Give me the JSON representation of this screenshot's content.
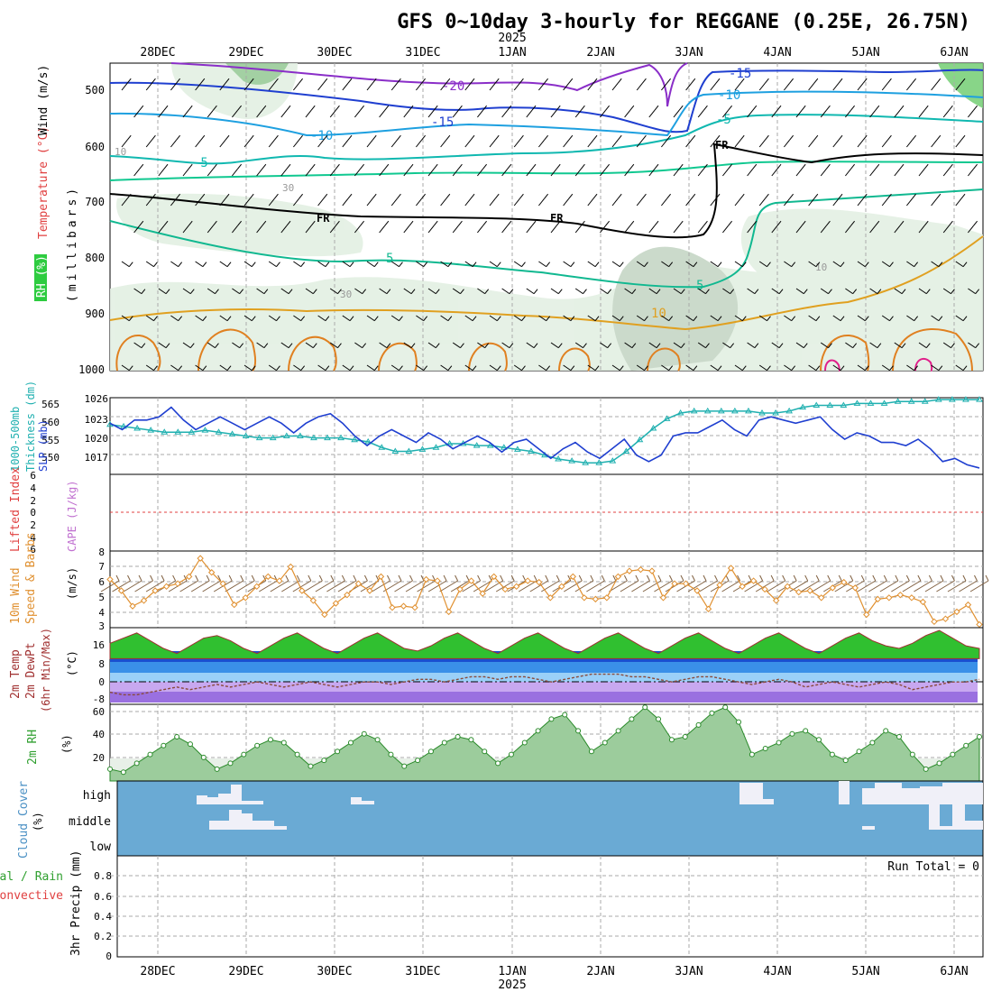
{
  "title": "GFS 0~10day 3-hourly for REGGANE (0.25E, 26.75N)",
  "year_label": "2025",
  "date_labels": [
    "28DEC",
    "29DEC",
    "30DEC",
    "31DEC",
    "1JAN",
    "2JAN",
    "3JAN",
    "4JAN",
    "5JAN",
    "6JAN"
  ],
  "colors": {
    "panel_bg": "#ffffff",
    "grid": "#999999",
    "slp": "#1f3fd0",
    "thickness": "#20b0b0",
    "lifted_index": "#e04040",
    "wind_speed": "#e09030",
    "temp_area": "#30c030",
    "dewpoint_line": "#8a4a3a",
    "rh_area": "#60b060",
    "cloud_bg": "#6aaad4",
    "cloud_fill": "#f0f0f8"
  },
  "panels": {
    "profile": {
      "axis_title_1": "Wind (m/s)",
      "axis_title_2": "Temperature (°C)",
      "axis_title_3": "RH (%)",
      "axis_unit": "(millibars)",
      "pressure_ticks": [
        "500",
        "600",
        "700",
        "800",
        "900",
        "1000"
      ],
      "contour_labels": [
        "-20",
        "-15",
        "-10",
        "-5",
        "FR",
        "FR",
        "FR",
        "5",
        "5",
        "10",
        "-15",
        "-10",
        "-5",
        "10",
        "30",
        "30",
        "10"
      ]
    },
    "slp": {
      "axis_title_1": "1000-500mb",
      "axis_title_2": "Thickness (dm)",
      "axis_title_3": "SLP (mb)",
      "thickness_ticks": [
        "565",
        "560",
        "555",
        "550"
      ],
      "slp_ticks": [
        "1026",
        "1023",
        "1020",
        "1017"
      ]
    },
    "li": {
      "axis_title_1": "Lifted Index",
      "axis_title_2": "CAPE (J/kg)",
      "ticks": [
        "6",
        "4",
        "2",
        "0",
        "2",
        "4",
        "6"
      ]
    },
    "wind10": {
      "axis_title_1": "10m Wind",
      "axis_title_2": "Speed & Barbs",
      "axis_unit": "(m/s)",
      "ticks": [
        "8",
        "7",
        "6",
        "5",
        "4",
        "3"
      ]
    },
    "temp": {
      "axis_title_1": "2m Temp",
      "axis_title_2": "2m DewPt",
      "axis_title_3": "(6hr Min/Max)",
      "axis_unit": "(°C)",
      "ticks": [
        "16",
        "8",
        "0",
        "-8"
      ]
    },
    "rh": {
      "axis_title": "2m RH",
      "axis_unit": "(%)",
      "ticks": [
        "60",
        "40",
        "20"
      ]
    },
    "cloud": {
      "axis_title": "Cloud Cover",
      "axis_unit": "(%)",
      "levels": [
        "high",
        "middle",
        "low"
      ]
    },
    "precip": {
      "axis_title_1": "Total / Rain",
      "axis_title_2": "Convective",
      "axis_title_3": "3hr Precip (mm)",
      "ticks": [
        "0.8",
        "0.6",
        "0.4",
        "0.2",
        "0"
      ],
      "run_total": "Run Total = 0"
    }
  },
  "chart_data": [
    {
      "type": "line",
      "title": "GFS 0~10day 3-hourly for REGGANE (0.25E, 26.75N)",
      "ylabel": "SLP (mb)",
      "ylim": [
        1014,
        1026
      ],
      "series": [
        {
          "name": "SLP (mb)",
          "values": [
            1022.0,
            1021.0,
            1022.5,
            1022.5,
            1023.0,
            1024.5,
            1022.5,
            1021.0,
            1022.0,
            1023.0,
            1022.0,
            1021.0,
            1022.0,
            1023.0,
            1022.0,
            1020.5,
            1022.0,
            1023.0,
            1023.5,
            1022.0,
            1020.0,
            1018.5,
            1020.0,
            1021.0,
            1020.0,
            1019.0,
            1020.5,
            1019.5,
            1018.0,
            1019.0,
            1020.0,
            1019.0,
            1017.5,
            1019.0,
            1019.5,
            1018.0,
            1016.5,
            1018.0,
            1019.0,
            1017.5,
            1016.5,
            1018.0,
            1019.5,
            1017.0,
            1016.0,
            1017.0,
            1020.0,
            1020.5,
            1020.5,
            1021.5,
            1022.5,
            1021.0,
            1020.0,
            1022.5,
            1023.0,
            1022.5,
            1022.0,
            1022.5,
            1023.0,
            1021.0,
            1019.5,
            1020.5,
            1020.0,
            1019.0,
            1019.0,
            1018.5,
            1019.5,
            1018.0,
            1016.0,
            1016.5,
            1015.5,
            1015.0
          ]
        }
      ]
    },
    {
      "type": "line",
      "ylabel": "1000-500mb Thickness (dm)",
      "ylim": [
        545,
        565
      ],
      "series": [
        {
          "name": "1000-500mb Thickness (dm)",
          "values": [
            558.0,
            557.5,
            557.0,
            556.5,
            556.0,
            556.0,
            556.0,
            556.5,
            556.0,
            555.5,
            555.0,
            554.5,
            554.5,
            555.0,
            555.0,
            554.5,
            554.5,
            554.5,
            554.0,
            553.5,
            552.0,
            551.0,
            551.0,
            551.5,
            552.0,
            553.0,
            553.0,
            552.5,
            552.5,
            552.0,
            551.5,
            551.0,
            550.0,
            549.0,
            548.5,
            548.0,
            548.0,
            548.5,
            551.0,
            554.0,
            557.0,
            559.5,
            561.0,
            561.5,
            561.5,
            561.5,
            561.5,
            561.5,
            561.0,
            561.0,
            561.5,
            562.5,
            563.0,
            563.0,
            563.0,
            563.5,
            563.5,
            563.5,
            564.0,
            564.0,
            564.0,
            564.5,
            564.5,
            564.5,
            564.5
          ]
        }
      ]
    },
    {
      "type": "line",
      "ylabel": "10m Wind Speed (m/s)",
      "ylim": [
        3,
        8
      ],
      "series": [
        {
          "name": "10m Wind Speed (m/s)",
          "values": [
            6.3,
            5.5,
            4.4,
            4.8,
            5.5,
            5.8,
            6.0,
            6.5,
            7.8,
            6.8,
            6.0,
            4.5,
            5.0,
            5.8,
            6.5,
            6.2,
            7.2,
            5.5,
            4.8,
            3.8,
            4.6,
            5.2,
            6.0,
            5.5,
            6.5,
            4.3,
            4.4,
            4.3,
            6.3,
            6.2,
            4.0,
            5.6,
            6.2,
            5.3,
            6.5,
            5.6,
            5.8,
            6.2,
            6.1,
            5.0,
            5.8,
            6.5,
            5.0,
            4.9,
            5.0,
            6.5,
            6.9,
            7.0,
            6.9,
            5.0,
            6.0,
            6.0,
            5.5,
            4.2,
            5.9,
            7.1,
            5.8,
            6.2,
            5.6,
            4.8,
            5.8,
            5.4,
            5.5,
            5.0,
            5.7,
            6.1,
            5.7,
            3.8,
            4.9,
            5.0,
            5.2,
            5.0,
            4.7,
            3.3,
            3.5,
            4.0,
            4.5,
            3.1
          ]
        }
      ]
    },
    {
      "type": "area",
      "ylabel": "2m Temp (°C)",
      "ylim": [
        -9,
        19
      ],
      "series": [
        {
          "name": "2m Temp (°C)",
          "values": [
            14,
            16,
            18,
            15,
            12,
            10,
            13,
            16,
            17,
            15,
            12,
            10,
            13,
            16,
            18,
            15,
            12,
            10,
            13,
            16,
            18,
            15,
            12,
            11,
            13,
            16,
            18,
            15,
            12,
            10,
            13,
            16,
            18,
            15,
            12,
            10,
            13,
            16,
            18,
            15,
            12,
            10,
            13,
            16,
            18,
            15,
            12,
            10,
            13,
            16,
            18,
            15,
            12,
            10,
            13,
            16,
            18,
            15,
            13,
            12,
            14,
            17,
            19,
            16,
            13,
            12
          ]
        },
        {
          "name": "2m DewPt (°C)",
          "values": [
            -5,
            -6,
            -6,
            -5,
            -4,
            -3,
            -4,
            -3,
            -2,
            -3,
            -2,
            -1,
            -2,
            -3,
            -2,
            -1,
            -2,
            -3,
            -2,
            -1,
            -1,
            -2,
            -1,
            0,
            0,
            -1,
            0,
            1,
            1,
            0,
            1,
            1,
            0,
            -1,
            0,
            1,
            2,
            2,
            2,
            1,
            1,
            0,
            -1,
            0,
            1,
            1,
            0,
            -1,
            -2,
            -1,
            0,
            -1,
            -3,
            -2,
            -1,
            -2,
            -3,
            -2,
            -1,
            -2,
            -4,
            -3,
            -2,
            -1,
            -1,
            0
          ]
        }
      ]
    },
    {
      "type": "area",
      "ylabel": "2m RH (%)",
      "ylim": [
        10,
        62
      ],
      "series": [
        {
          "name": "2m RH (%)",
          "values": [
            18,
            16,
            22,
            28,
            34,
            40,
            35,
            26,
            18,
            22,
            28,
            34,
            38,
            36,
            28,
            20,
            24,
            30,
            36,
            42,
            38,
            28,
            20,
            24,
            30,
            36,
            40,
            38,
            30,
            22,
            28,
            36,
            44,
            52,
            55,
            44,
            30,
            36,
            44,
            52,
            60,
            52,
            38,
            40,
            48,
            56,
            60,
            50,
            28,
            32,
            36,
            42,
            44,
            38,
            28,
            24,
            30,
            36,
            44,
            40,
            28,
            18,
            22,
            28,
            34,
            40
          ]
        }
      ]
    }
  ]
}
